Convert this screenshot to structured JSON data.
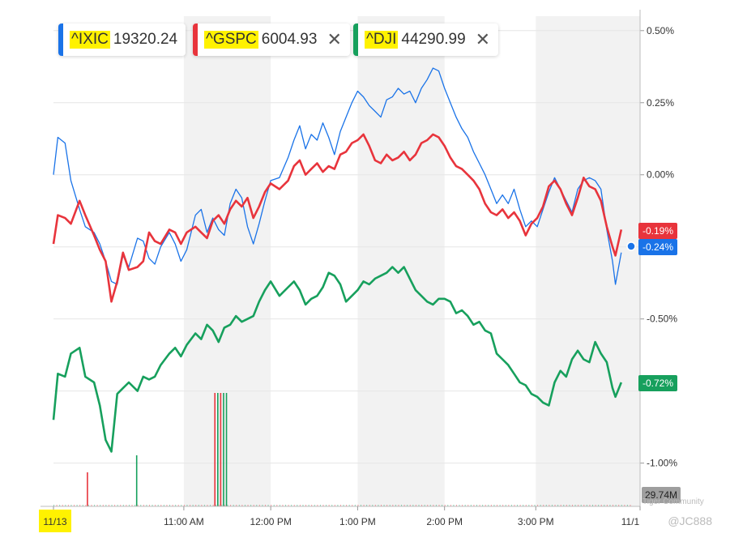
{
  "legend": [
    {
      "symbol": "^IXIC",
      "value": "19320.24",
      "color": "#1a73e8",
      "closable": false
    },
    {
      "symbol": "^GSPC",
      "value": "6004.93",
      "color": "#e8343c",
      "closable": true
    },
    {
      "symbol": "^DJI",
      "value": "44290.99",
      "color": "#17a05d",
      "closable": true
    }
  ],
  "watermark": "@JC888",
  "watermark_small": "Tiger Community",
  "chart_data": {
    "type": "line",
    "x_ticks": [
      "11/13",
      "11:00 AM",
      "12:00 PM",
      "1:00 PM",
      "2:00 PM",
      "3:00 PM",
      "11/1"
    ],
    "y_ticks": [
      "0.50%",
      "0.25%",
      "0.00%",
      "-0.50%",
      "-1.00%"
    ],
    "ylim": [
      -1.15,
      0.55
    ],
    "x_range_minutes": [
      0,
      405
    ],
    "volume_label": "29.74M",
    "series": [
      {
        "name": "^IXIC",
        "color": "#1a73e8",
        "end_label": "-0.24%",
        "points": [
          [
            0,
            0.0
          ],
          [
            3,
            0.13
          ],
          [
            8,
            0.11
          ],
          [
            12,
            -0.02
          ],
          [
            18,
            -0.12
          ],
          [
            22,
            -0.18
          ],
          [
            28,
            -0.2
          ],
          [
            32,
            -0.24
          ],
          [
            36,
            -0.3
          ],
          [
            40,
            -0.37
          ],
          [
            44,
            -0.38
          ],
          [
            48,
            -0.28
          ],
          [
            52,
            -0.32
          ],
          [
            58,
            -0.22
          ],
          [
            62,
            -0.23
          ],
          [
            66,
            -0.29
          ],
          [
            70,
            -0.31
          ],
          [
            74,
            -0.25
          ],
          [
            80,
            -0.2
          ],
          [
            84,
            -0.24
          ],
          [
            88,
            -0.3
          ],
          [
            92,
            -0.26
          ],
          [
            98,
            -0.14
          ],
          [
            102,
            -0.12
          ],
          [
            106,
            -0.2
          ],
          [
            110,
            -0.15
          ],
          [
            114,
            -0.19
          ],
          [
            118,
            -0.21
          ],
          [
            122,
            -0.1
          ],
          [
            126,
            -0.05
          ],
          [
            130,
            -0.08
          ],
          [
            134,
            -0.18
          ],
          [
            138,
            -0.24
          ],
          [
            142,
            -0.17
          ],
          [
            146,
            -0.09
          ],
          [
            150,
            -0.02
          ],
          [
            156,
            -0.01
          ],
          [
            162,
            0.06
          ],
          [
            166,
            0.12
          ],
          [
            170,
            0.17
          ],
          [
            174,
            0.09
          ],
          [
            178,
            0.14
          ],
          [
            182,
            0.12
          ],
          [
            186,
            0.18
          ],
          [
            190,
            0.13
          ],
          [
            194,
            0.07
          ],
          [
            198,
            0.15
          ],
          [
            202,
            0.2
          ],
          [
            206,
            0.25
          ],
          [
            210,
            0.29
          ],
          [
            214,
            0.27
          ],
          [
            218,
            0.24
          ],
          [
            222,
            0.22
          ],
          [
            226,
            0.2
          ],
          [
            230,
            0.26
          ],
          [
            234,
            0.27
          ],
          [
            238,
            0.3
          ],
          [
            242,
            0.28
          ],
          [
            246,
            0.29
          ],
          [
            250,
            0.25
          ],
          [
            254,
            0.3
          ],
          [
            258,
            0.33
          ],
          [
            262,
            0.37
          ],
          [
            266,
            0.36
          ],
          [
            270,
            0.3
          ],
          [
            274,
            0.25
          ],
          [
            278,
            0.2
          ],
          [
            282,
            0.16
          ],
          [
            286,
            0.13
          ],
          [
            290,
            0.08
          ],
          [
            294,
            0.04
          ],
          [
            298,
            0.0
          ],
          [
            302,
            -0.05
          ],
          [
            306,
            -0.1
          ],
          [
            310,
            -0.07
          ],
          [
            314,
            -0.1
          ],
          [
            318,
            -0.05
          ],
          [
            322,
            -0.12
          ],
          [
            326,
            -0.18
          ],
          [
            330,
            -0.16
          ],
          [
            334,
            -0.18
          ],
          [
            338,
            -0.12
          ],
          [
            342,
            -0.06
          ],
          [
            346,
            -0.01
          ],
          [
            350,
            -0.05
          ],
          [
            354,
            -0.09
          ],
          [
            358,
            -0.13
          ],
          [
            362,
            -0.05
          ],
          [
            366,
            -0.02
          ],
          [
            370,
            -0.01
          ],
          [
            374,
            -0.02
          ],
          [
            378,
            -0.05
          ],
          [
            382,
            -0.19
          ],
          [
            386,
            -0.3
          ],
          [
            388,
            -0.38
          ],
          [
            392,
            -0.27
          ]
        ]
      },
      {
        "name": "^GSPC",
        "color": "#e8343c",
        "end_label": "-0.19%",
        "points": [
          [
            0,
            -0.24
          ],
          [
            3,
            -0.14
          ],
          [
            8,
            -0.15
          ],
          [
            12,
            -0.17
          ],
          [
            18,
            -0.09
          ],
          [
            22,
            -0.14
          ],
          [
            28,
            -0.21
          ],
          [
            32,
            -0.26
          ],
          [
            36,
            -0.3
          ],
          [
            40,
            -0.44
          ],
          [
            44,
            -0.37
          ],
          [
            48,
            -0.27
          ],
          [
            52,
            -0.33
          ],
          [
            58,
            -0.32
          ],
          [
            62,
            -0.3
          ],
          [
            66,
            -0.2
          ],
          [
            70,
            -0.23
          ],
          [
            74,
            -0.24
          ],
          [
            80,
            -0.19
          ],
          [
            84,
            -0.2
          ],
          [
            88,
            -0.24
          ],
          [
            92,
            -0.2
          ],
          [
            98,
            -0.18
          ],
          [
            102,
            -0.2
          ],
          [
            106,
            -0.22
          ],
          [
            110,
            -0.16
          ],
          [
            114,
            -0.14
          ],
          [
            118,
            -0.17
          ],
          [
            122,
            -0.12
          ],
          [
            126,
            -0.09
          ],
          [
            130,
            -0.11
          ],
          [
            134,
            -0.08
          ],
          [
            138,
            -0.15
          ],
          [
            142,
            -0.11
          ],
          [
            146,
            -0.06
          ],
          [
            150,
            -0.03
          ],
          [
            156,
            -0.05
          ],
          [
            162,
            -0.02
          ],
          [
            166,
            0.03
          ],
          [
            170,
            0.05
          ],
          [
            174,
            0.0
          ],
          [
            178,
            0.02
          ],
          [
            182,
            0.04
          ],
          [
            186,
            0.01
          ],
          [
            190,
            0.03
          ],
          [
            194,
            0.02
          ],
          [
            198,
            0.07
          ],
          [
            202,
            0.08
          ],
          [
            206,
            0.11
          ],
          [
            210,
            0.12
          ],
          [
            214,
            0.14
          ],
          [
            218,
            0.1
          ],
          [
            222,
            0.05
          ],
          [
            226,
            0.04
          ],
          [
            230,
            0.07
          ],
          [
            234,
            0.05
          ],
          [
            238,
            0.06
          ],
          [
            242,
            0.08
          ],
          [
            246,
            0.05
          ],
          [
            250,
            0.07
          ],
          [
            254,
            0.11
          ],
          [
            258,
            0.12
          ],
          [
            262,
            0.14
          ],
          [
            266,
            0.13
          ],
          [
            270,
            0.1
          ],
          [
            274,
            0.06
          ],
          [
            278,
            0.03
          ],
          [
            282,
            0.02
          ],
          [
            286,
            0.0
          ],
          [
            290,
            -0.02
          ],
          [
            294,
            -0.05
          ],
          [
            298,
            -0.1
          ],
          [
            302,
            -0.13
          ],
          [
            306,
            -0.14
          ],
          [
            310,
            -0.12
          ],
          [
            314,
            -0.15
          ],
          [
            318,
            -0.13
          ],
          [
            322,
            -0.16
          ],
          [
            326,
            -0.21
          ],
          [
            330,
            -0.17
          ],
          [
            334,
            -0.15
          ],
          [
            338,
            -0.11
          ],
          [
            342,
            -0.04
          ],
          [
            346,
            -0.02
          ],
          [
            350,
            -0.05
          ],
          [
            354,
            -0.1
          ],
          [
            358,
            -0.14
          ],
          [
            362,
            -0.08
          ],
          [
            366,
            -0.01
          ],
          [
            370,
            -0.04
          ],
          [
            374,
            -0.05
          ],
          [
            378,
            -0.09
          ],
          [
            382,
            -0.18
          ],
          [
            386,
            -0.25
          ],
          [
            388,
            -0.28
          ],
          [
            392,
            -0.19
          ]
        ]
      },
      {
        "name": "^DJI",
        "color": "#17a05d",
        "end_label": "-0.72%",
        "points": [
          [
            0,
            -0.85
          ],
          [
            3,
            -0.69
          ],
          [
            8,
            -0.7
          ],
          [
            12,
            -0.62
          ],
          [
            18,
            -0.6
          ],
          [
            22,
            -0.7
          ],
          [
            28,
            -0.72
          ],
          [
            32,
            -0.8
          ],
          [
            36,
            -0.92
          ],
          [
            40,
            -0.96
          ],
          [
            44,
            -0.76
          ],
          [
            48,
            -0.74
          ],
          [
            52,
            -0.72
          ],
          [
            58,
            -0.75
          ],
          [
            62,
            -0.7
          ],
          [
            66,
            -0.71
          ],
          [
            70,
            -0.7
          ],
          [
            74,
            -0.66
          ],
          [
            80,
            -0.62
          ],
          [
            84,
            -0.6
          ],
          [
            88,
            -0.63
          ],
          [
            92,
            -0.59
          ],
          [
            98,
            -0.55
          ],
          [
            102,
            -0.57
          ],
          [
            106,
            -0.52
          ],
          [
            110,
            -0.54
          ],
          [
            114,
            -0.58
          ],
          [
            118,
            -0.53
          ],
          [
            122,
            -0.52
          ],
          [
            126,
            -0.49
          ],
          [
            130,
            -0.51
          ],
          [
            134,
            -0.5
          ],
          [
            138,
            -0.49
          ],
          [
            142,
            -0.44
          ],
          [
            146,
            -0.4
          ],
          [
            150,
            -0.37
          ],
          [
            156,
            -0.42
          ],
          [
            162,
            -0.39
          ],
          [
            166,
            -0.37
          ],
          [
            170,
            -0.4
          ],
          [
            174,
            -0.45
          ],
          [
            178,
            -0.43
          ],
          [
            182,
            -0.42
          ],
          [
            186,
            -0.39
          ],
          [
            190,
            -0.34
          ],
          [
            194,
            -0.35
          ],
          [
            198,
            -0.38
          ],
          [
            202,
            -0.44
          ],
          [
            206,
            -0.42
          ],
          [
            210,
            -0.4
          ],
          [
            214,
            -0.37
          ],
          [
            218,
            -0.38
          ],
          [
            222,
            -0.36
          ],
          [
            226,
            -0.35
          ],
          [
            230,
            -0.34
          ],
          [
            234,
            -0.32
          ],
          [
            238,
            -0.34
          ],
          [
            242,
            -0.32
          ],
          [
            246,
            -0.36
          ],
          [
            250,
            -0.4
          ],
          [
            254,
            -0.42
          ],
          [
            258,
            -0.44
          ],
          [
            262,
            -0.45
          ],
          [
            266,
            -0.43
          ],
          [
            270,
            -0.43
          ],
          [
            274,
            -0.44
          ],
          [
            278,
            -0.48
          ],
          [
            282,
            -0.47
          ],
          [
            286,
            -0.49
          ],
          [
            290,
            -0.52
          ],
          [
            294,
            -0.51
          ],
          [
            298,
            -0.54
          ],
          [
            302,
            -0.55
          ],
          [
            306,
            -0.62
          ],
          [
            310,
            -0.64
          ],
          [
            314,
            -0.66
          ],
          [
            318,
            -0.69
          ],
          [
            322,
            -0.72
          ],
          [
            326,
            -0.73
          ],
          [
            330,
            -0.76
          ],
          [
            334,
            -0.77
          ],
          [
            338,
            -0.79
          ],
          [
            342,
            -0.8
          ],
          [
            346,
            -0.72
          ],
          [
            350,
            -0.68
          ],
          [
            354,
            -0.7
          ],
          [
            358,
            -0.64
          ],
          [
            362,
            -0.61
          ],
          [
            366,
            -0.64
          ],
          [
            370,
            -0.65
          ],
          [
            374,
            -0.58
          ],
          [
            378,
            -0.62
          ],
          [
            382,
            -0.65
          ],
          [
            386,
            -0.74
          ],
          [
            388,
            -0.77
          ],
          [
            392,
            -0.72
          ]
        ]
      }
    ],
    "volume_bars": [
      {
        "x": 23,
        "value": 0.3,
        "color": "#e8343c"
      },
      {
        "x": 57,
        "value": 0.45,
        "color": "#17a05d"
      },
      {
        "x": 111,
        "value": 1.0,
        "color": "#e8343c"
      },
      {
        "x": 113,
        "value": 1.0,
        "color": "#17a05d"
      },
      {
        "x": 115,
        "value": 1.0,
        "color": "#e8343c"
      },
      {
        "x": 117,
        "value": 1.0,
        "color": "#17a05d"
      },
      {
        "x": 119,
        "value": 1.0,
        "color": "#17a05d"
      }
    ],
    "shaded_bands": [
      [
        90,
        150
      ],
      [
        210,
        270
      ],
      [
        333,
        405
      ]
    ]
  }
}
